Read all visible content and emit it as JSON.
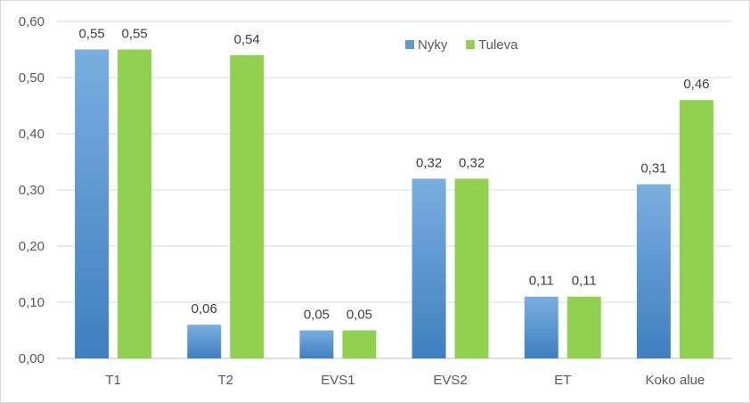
{
  "chart_data": {
    "type": "bar",
    "categories": [
      "T1",
      "T2",
      "EVS1",
      "EVS2",
      "ET",
      "Koko alue"
    ],
    "series": [
      {
        "name": "Nyky",
        "values": [
          0.55,
          0.06,
          0.05,
          0.32,
          0.11,
          0.31
        ],
        "labels": [
          "0,55",
          "0,06",
          "0,05",
          "0,32",
          "0,11",
          "0,31"
        ],
        "color": "#5b9bd5"
      },
      {
        "name": "Tuleva",
        "values": [
          0.55,
          0.54,
          0.05,
          0.32,
          0.11,
          0.46
        ],
        "labels": [
          "0,55",
          "0,54",
          "0,05",
          "0,32",
          "0,11",
          "0,46"
        ],
        "color": "#92d050"
      }
    ],
    "ylim": [
      0,
      0.6
    ],
    "yticks": [
      "0,00",
      "0,10",
      "0,20",
      "0,30",
      "0,40",
      "0,50",
      "0,60"
    ],
    "grid": true,
    "legend_position": "top-right"
  }
}
